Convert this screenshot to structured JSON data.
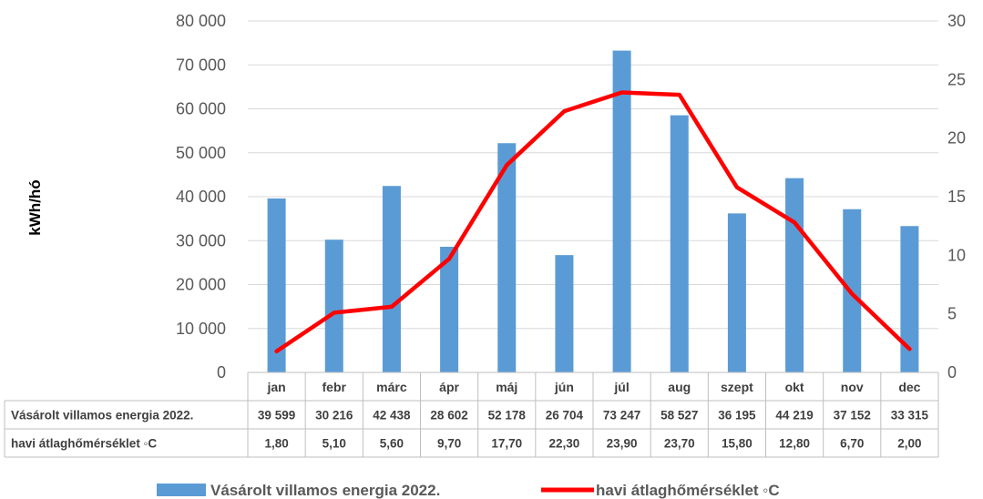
{
  "chart_data": {
    "type": "bar",
    "categories": [
      "jan",
      "febr",
      "márc",
      "ápr",
      "máj",
      "jún",
      "júl",
      "aug",
      "szept",
      "okt",
      "nov",
      "dec"
    ],
    "ylabel": "kWh/hó",
    "ylim": [
      0,
      80000
    ],
    "yticks": [
      "0",
      "10 000",
      "20 000",
      "30 000",
      "40 000",
      "50 000",
      "60 000",
      "70 000",
      "80 000"
    ],
    "y2lim": [
      0,
      30
    ],
    "y2ticks": [
      "0",
      "5",
      "10",
      "15",
      "20",
      "25",
      "30"
    ],
    "grid": true,
    "legend_position": "bottom",
    "series": [
      {
        "name": "Vásárolt villamos energia 2022.",
        "type": "bar",
        "axis": "left",
        "color": "#5B9BD5",
        "values": [
          39599,
          30216,
          42438,
          28602,
          52178,
          26704,
          73247,
          58527,
          36195,
          44219,
          37152,
          33315
        ],
        "table_values": [
          "39 599",
          "30 216",
          "42 438",
          "28 602",
          "52 178",
          "26 704",
          "73 247",
          "58 527",
          "36 195",
          "44 219",
          "37 152",
          "33 315"
        ]
      },
      {
        "name": "havi átlaghőmérséklet ◦C",
        "type": "line",
        "axis": "right",
        "color": "#FF0000",
        "values": [
          1.8,
          5.1,
          5.6,
          9.7,
          17.7,
          22.3,
          23.9,
          23.7,
          15.8,
          12.8,
          6.7,
          2.0
        ],
        "table_values": [
          "1,80",
          "5,10",
          "5,60",
          "9,70",
          "17,70",
          "22,30",
          "23,90",
          "23,70",
          "15,80",
          "12,80",
          "6,70",
          "2,00"
        ]
      }
    ]
  }
}
